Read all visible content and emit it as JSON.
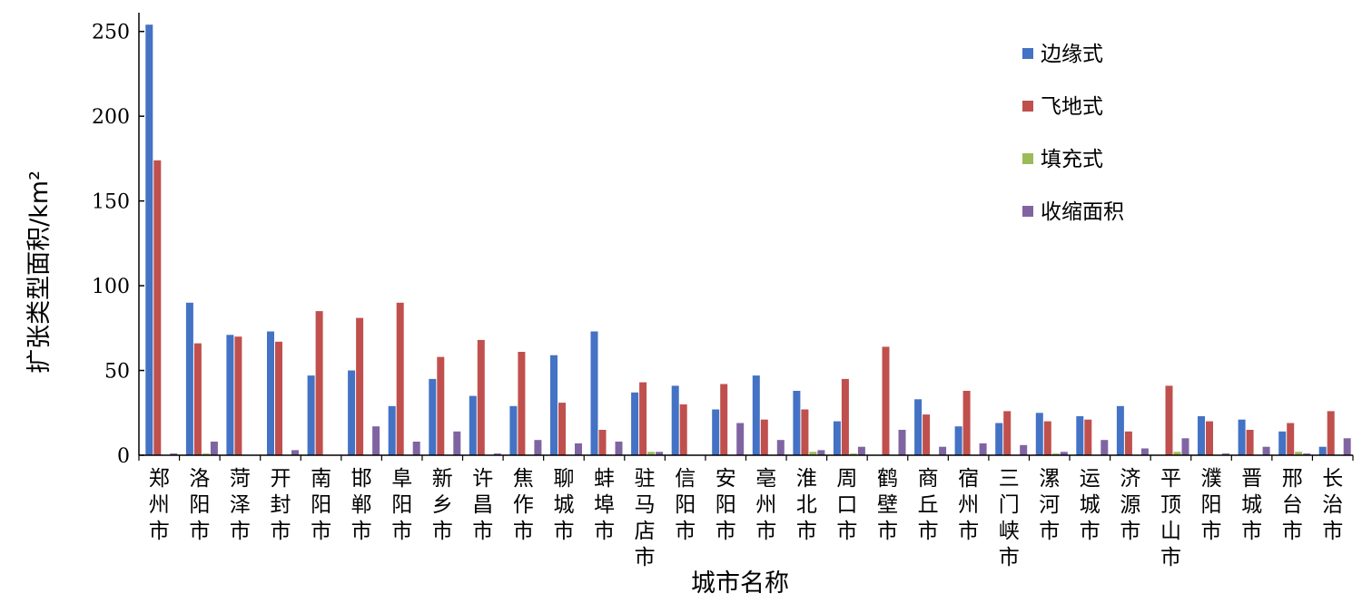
{
  "chart_data": {
    "type": "bar",
    "ylabel": "扩张类型面积/km²",
    "xlabel": "城市名称",
    "ylim": [
      0,
      260
    ],
    "yticks": [
      0,
      50,
      100,
      150,
      200,
      250
    ],
    "grid": false,
    "legend_position": "top-right",
    "categories": [
      "郑州市",
      "洛阳市",
      "菏泽市",
      "开封市",
      "南阳市",
      "邯郸市",
      "阜阳市",
      "新乡市",
      "许昌市",
      "焦作市",
      "聊城市",
      "蚌埠市",
      "驻马店市",
      "信阳市",
      "安阳市",
      "亳州市",
      "淮北市",
      "周口市",
      "鹤壁市",
      "商丘市",
      "宿州市",
      "三门峡市",
      "漯河市",
      "运城市",
      "济源市",
      "平顶山市",
      "濮阳市",
      "晋城市",
      "邢台市",
      "长治市"
    ],
    "series": [
      {
        "name": "边缘式",
        "color": "#4472c4",
        "values": [
          254,
          90,
          71,
          73,
          47,
          50,
          29,
          45,
          35,
          29,
          59,
          73,
          37,
          41,
          27,
          47,
          38,
          20,
          0,
          33,
          17,
          19,
          25,
          23,
          29,
          0,
          23,
          21,
          14,
          5
        ]
      },
      {
        "name": "飞地式",
        "color": "#c0504d",
        "values": [
          174,
          66,
          70,
          67,
          85,
          81,
          90,
          58,
          68,
          61,
          31,
          15,
          43,
          30,
          42,
          21,
          27,
          45,
          64,
          24,
          38,
          26,
          20,
          21,
          14,
          41,
          20,
          15,
          19,
          26
        ]
      },
      {
        "name": "填充式",
        "color": "#9bbb59",
        "values": [
          0,
          1,
          0,
          0,
          0,
          0,
          0,
          0,
          0,
          0,
          0,
          0,
          2,
          0,
          0,
          0,
          2,
          1,
          0,
          0,
          0,
          0,
          1,
          0,
          0,
          2,
          0,
          0,
          2,
          0
        ]
      },
      {
        "name": "收缩面积",
        "color": "#8064a2",
        "values": [
          1,
          8,
          0,
          3,
          0,
          17,
          8,
          14,
          1,
          9,
          7,
          8,
          2,
          0,
          19,
          9,
          3,
          5,
          15,
          5,
          7,
          6,
          2,
          9,
          4,
          10,
          1,
          5,
          1,
          10
        ]
      }
    ]
  }
}
